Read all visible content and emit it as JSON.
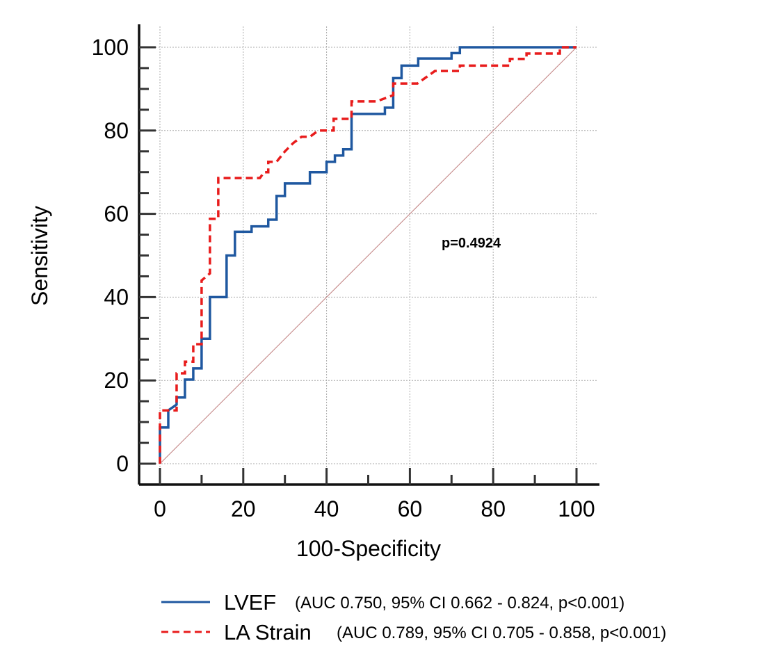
{
  "chart_data": {
    "type": "line",
    "title": "",
    "xlabel": "100-Specificity",
    "ylabel": "Sensitivity",
    "xlim": [
      0,
      100
    ],
    "ylim": [
      0,
      100
    ],
    "xticks": [
      "0",
      "20",
      "40",
      "60",
      "80",
      "100"
    ],
    "yticks": [
      "0",
      "20",
      "40",
      "60",
      "80",
      "100"
    ],
    "grid": true,
    "annotation": "p=0.4924",
    "legend_position": "bottom",
    "colors": {
      "lvef": "#1f58a0",
      "la": "#e81c1c",
      "ref": "#c08080"
    },
    "series": [
      {
        "name": "LVEF",
        "legend_detail": "(AUC 0.750, 95% CI 0.662 - 0.824, p<0.001)",
        "style": "solid",
        "x": [
          0,
          0,
          2,
          2,
          4,
          4,
          6,
          6,
          8,
          8,
          10,
          10,
          12,
          12,
          16,
          16,
          18,
          18,
          22,
          22,
          26,
          26,
          28,
          28,
          30,
          30,
          36,
          36,
          40,
          40,
          42,
          42,
          44,
          44,
          46,
          46,
          54,
          54,
          56,
          56,
          58,
          58,
          62,
          62,
          70,
          70,
          72,
          72,
          100
        ],
        "y": [
          0,
          8.7,
          8.7,
          12.8,
          14.2,
          15.9,
          15.9,
          20.2,
          20.2,
          22.9,
          22.9,
          30,
          30,
          40,
          40,
          50,
          50,
          55.7,
          55.7,
          57,
          57,
          58.6,
          58.6,
          64.3,
          64.3,
          67.3,
          67.3,
          70,
          70,
          72.5,
          72.5,
          74,
          74,
          75.5,
          75.5,
          84,
          84,
          85.5,
          85.5,
          92.6,
          92.6,
          95.6,
          95.6,
          97.3,
          97.3,
          98.6,
          98.6,
          100,
          100
        ]
      },
      {
        "name": "LA Strain",
        "legend_detail": "(AUC 0.789, 95% CI 0.705 - 0.858, p<0.001)",
        "style": "dashed",
        "x": [
          0,
          0,
          4,
          4,
          6,
          6,
          8,
          8,
          10,
          10,
          12,
          12,
          14,
          14,
          24,
          25,
          26,
          26,
          28,
          30,
          32,
          34,
          36,
          38,
          41.7,
          41.7,
          46,
          46,
          52,
          56,
          56,
          61.8,
          66,
          66,
          72,
          72,
          84,
          84,
          88,
          88,
          96,
          96,
          100
        ],
        "y": [
          0,
          12.8,
          12.8,
          21.7,
          21.7,
          24.5,
          24.5,
          28.7,
          28.7,
          44,
          45.7,
          58.8,
          58.8,
          68.6,
          68.6,
          70,
          70,
          72.5,
          72.5,
          75,
          77,
          78.5,
          78.5,
          80,
          80,
          82.8,
          82.8,
          87,
          87,
          88.5,
          91.3,
          91.3,
          94.3,
          94.3,
          94.3,
          95.6,
          95.6,
          97.2,
          97.2,
          98.5,
          98.5,
          100,
          100
        ]
      },
      {
        "name": "Reference",
        "style": "diagonal",
        "x": [
          0,
          100
        ],
        "y": [
          0,
          100
        ]
      }
    ]
  }
}
